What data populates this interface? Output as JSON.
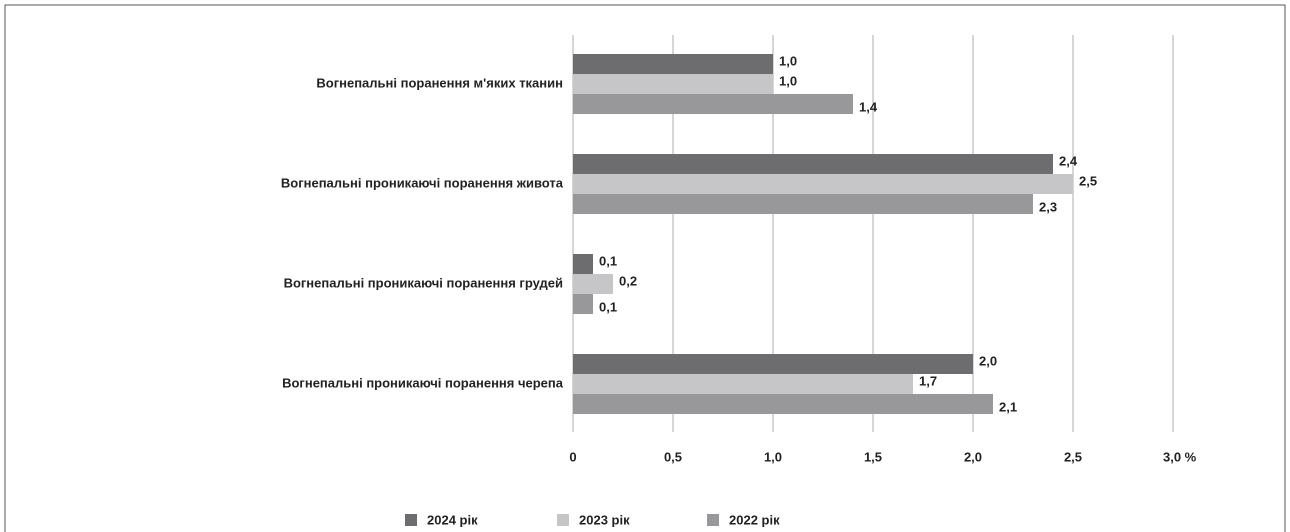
{
  "chart_data": {
    "type": "hbar",
    "categories": [
      "Вогнепальні поранення м'яких тканин",
      "Вогнепальні проникаючі поранення живота",
      "Вогнепальні проникаючі поранення грудей",
      "Вогнепальні проникаючі поранення черепа"
    ],
    "series": [
      {
        "name": "2024 рік",
        "color": "#6d6d6f",
        "values": [
          1.0,
          2.4,
          0.1,
          2.0
        ],
        "value_labels": [
          "1,0",
          "2,4",
          "0,1",
          "2,0"
        ]
      },
      {
        "name": "2023 рік",
        "color": "#c6c6c8",
        "values": [
          1.0,
          2.5,
          0.2,
          1.7
        ],
        "value_labels": [
          "1,0",
          "2,5",
          "0,2",
          "1,7"
        ]
      },
      {
        "name": "2022 рік",
        "color": "#98989a",
        "values": [
          1.4,
          2.3,
          0.1,
          2.1
        ],
        "value_labels": [
          "1,4",
          "2,3",
          "0,1",
          "2,1"
        ]
      }
    ],
    "xlim": [
      0,
      3
    ],
    "xticks": [
      0,
      {
        "value": 0.5,
        "label": "0,5"
      },
      {
        "value": 1,
        "label": "1,0"
      },
      {
        "value": 1.5,
        "label": "1,5"
      },
      {
        "value": 2,
        "label": "2,0"
      },
      {
        "value": 2.5,
        "label": "2,5"
      },
      {
        "value": 3,
        "label": "3,0 %"
      }
    ],
    "grid": true,
    "legend": "bottom"
  }
}
